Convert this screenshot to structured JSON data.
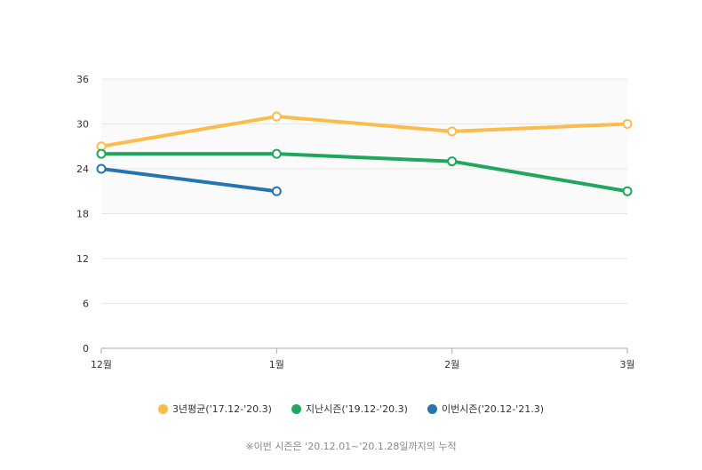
{
  "chart_data": {
    "type": "line",
    "categories": [
      "12월",
      "1월",
      "2월",
      "3월"
    ],
    "ylim": [
      0,
      36
    ],
    "yticks": [
      0,
      6,
      12,
      18,
      24,
      30,
      36
    ],
    "grid": true,
    "legend_position": "bottom",
    "series": [
      {
        "name": "3년평균('17.12-'20.3)",
        "color": "#fbbc4e",
        "values": [
          27,
          31,
          29,
          30
        ]
      },
      {
        "name": "지난시즌('19.12-'20.3)",
        "color": "#1fa75e",
        "values": [
          26,
          26,
          25,
          21
        ]
      },
      {
        "name": "이번시즌('20.12-'21.3)",
        "color": "#2675ae",
        "values": [
          24,
          21,
          null,
          null
        ]
      }
    ]
  },
  "footnote": "※이번 시즌은 '20.12.01~'20.1.28일까지의 누적"
}
